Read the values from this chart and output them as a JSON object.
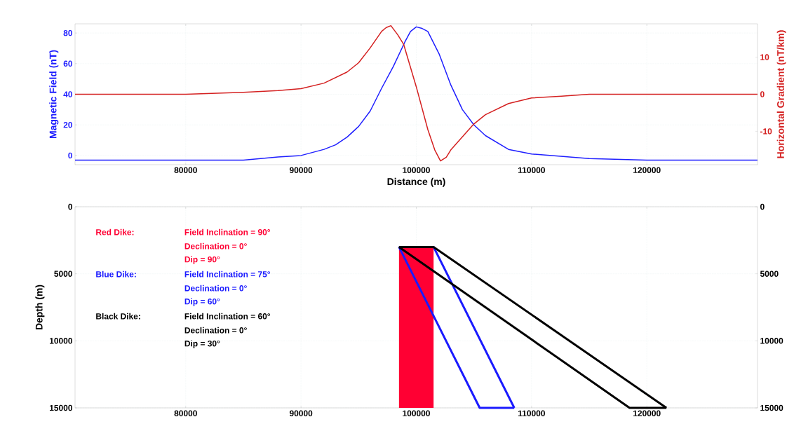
{
  "chart_data": [
    {
      "type": "line",
      "xlabel": "Distance (m)",
      "ylabel": "Magnetic Field (nT)",
      "y2label": "Horizontal Gradient (nT/km)",
      "xlim": [
        70400,
        129600
      ],
      "xticks": [
        80000,
        90000,
        100000,
        110000,
        120000
      ],
      "ylim": [
        -6,
        86
      ],
      "yticks": [
        0,
        20,
        40,
        60,
        80
      ],
      "y2lim": [
        -19,
        19
      ],
      "y2ticks": [
        -10,
        0,
        10
      ],
      "grid": true,
      "series": [
        {
          "color": "#1f1fff",
          "x": [
            70400,
            75000,
            80000,
            85000,
            88000,
            90000,
            92000,
            93000,
            94000,
            95000,
            96000,
            97000,
            98000,
            99000,
            99500,
            100000,
            100500,
            101000,
            102000,
            103000,
            104000,
            105000,
            106000,
            108000,
            110000,
            115000,
            120000,
            129600
          ],
          "values": [
            -3,
            -3,
            -3,
            -3,
            -1,
            0,
            4,
            7,
            12,
            19,
            29,
            44,
            58,
            74,
            81,
            84,
            83,
            81,
            66,
            46,
            30,
            20,
            13,
            4,
            1,
            -2,
            -3,
            -3
          ]
        },
        {
          "color": "#d42020",
          "axis": "y2",
          "x": [
            70400,
            80000,
            85000,
            88000,
            90000,
            92000,
            94000,
            95000,
            96000,
            97000,
            97400,
            97800,
            98400,
            98900,
            100000,
            101000,
            101600,
            102100,
            102600,
            103000,
            104000,
            105000,
            106000,
            108000,
            110000,
            112600,
            115000,
            120000,
            129600
          ],
          "values": [
            0,
            0,
            0.5,
            1,
            1.5,
            3,
            6,
            8.5,
            12.5,
            17,
            18,
            18.5,
            16,
            13.5,
            2,
            -9.5,
            -15,
            -18,
            -17,
            -15,
            -11.5,
            -8,
            -5.5,
            -2.5,
            -1,
            -0.5,
            0,
            0,
            0
          ]
        }
      ]
    },
    {
      "type": "line",
      "ylabel": "Depth (m)",
      "xlim": [
        70400,
        129600
      ],
      "xticks": [
        80000,
        90000,
        100000,
        110000,
        120000
      ],
      "ylim": [
        15000,
        0
      ],
      "yticks": [
        0,
        5000,
        10000,
        15000
      ],
      "y2lim": [
        15000,
        0
      ],
      "y2ticks": [
        0,
        5000,
        10000,
        15000
      ],
      "grid": true,
      "series": [
        {
          "type": "area",
          "color": "#ff0033",
          "x": [
            98500,
            98500,
            101500,
            101500
          ],
          "values": [
            15000,
            3000,
            3000,
            15000
          ]
        },
        {
          "color": "#1a1aff",
          "x": [
            98500,
            101500,
            108500
          ],
          "values": [
            3000,
            3000,
            15000
          ]
        },
        {
          "color": "#000000",
          "x": [
            98500,
            101500,
            121700
          ],
          "values": [
            3000,
            3000,
            15000
          ]
        },
        {
          "color": "#1a1aff",
          "x": [
            98500,
            105500,
            108500
          ],
          "values": [
            3000,
            15000,
            15000
          ]
        },
        {
          "color": "#000000",
          "x": [
            98500,
            118500,
            121700
          ],
          "values": [
            3000,
            15000,
            15000
          ]
        }
      ],
      "annotations": [
        "Red Dike:",
        "Field Inclination = 90°",
        "Declination = 0°",
        "Dip = 90°",
        "Blue Dike:",
        "Field Inclination = 75°",
        "Declination = 0°",
        "Dip = 60°",
        "Black Dike:",
        "Field Inclination = 60°",
        "Declination = 0°",
        "Dip = 30°"
      ]
    }
  ]
}
